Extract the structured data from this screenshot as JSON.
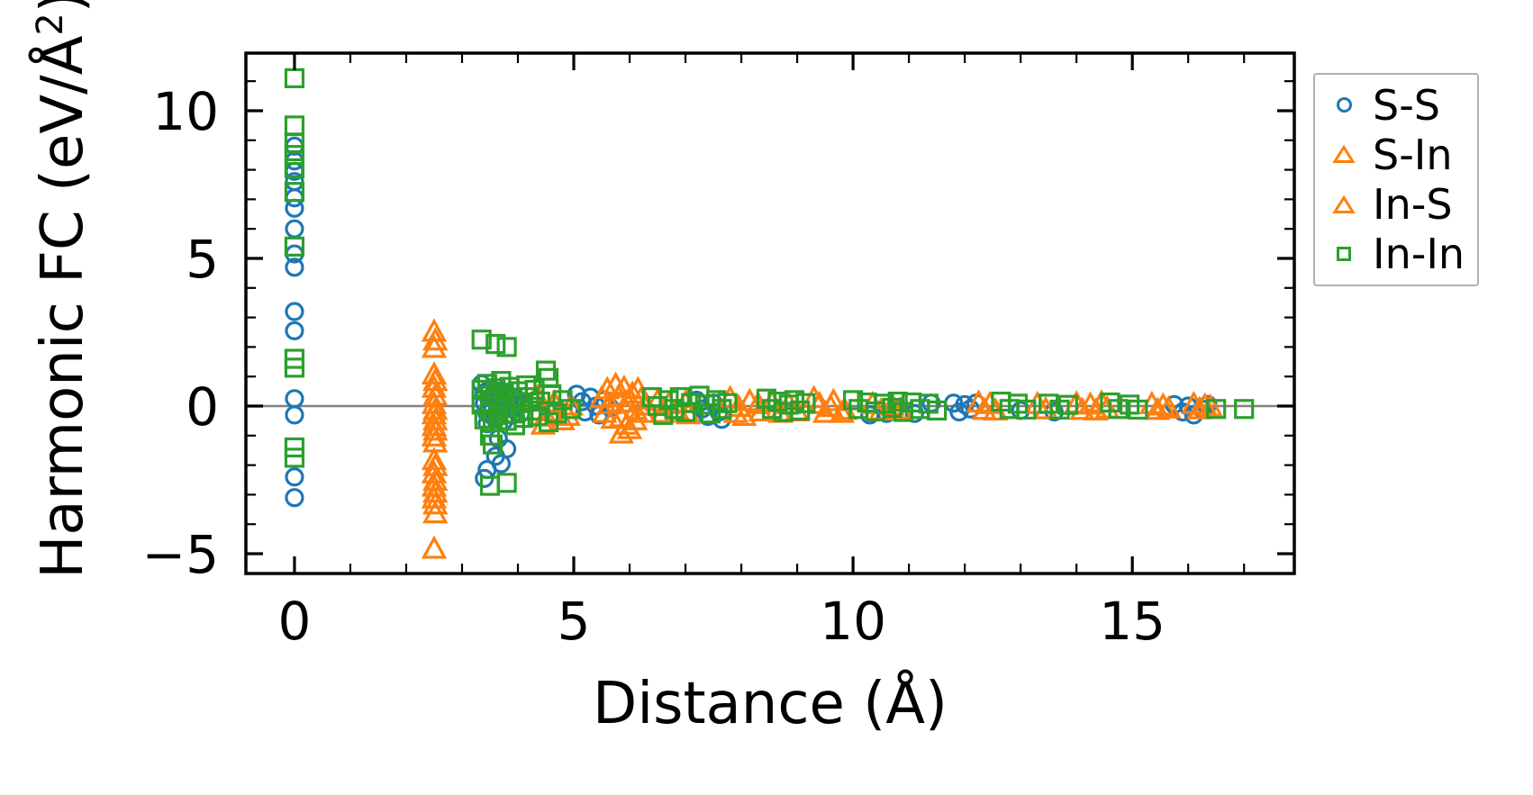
{
  "figure": {
    "background": "#ffffff"
  },
  "chart_data": {
    "type": "scatter",
    "title": "",
    "xlabel": "Distance (Å)",
    "ylabel": "Harmonic FC (eV/Å²)",
    "ylabel_parts": {
      "pre": "Harmonic FC (eV/Å",
      "sup": "2",
      "post": ")"
    },
    "xlim": [
      -0.87,
      17.9
    ],
    "ylim": [
      -5.67,
      11.95
    ],
    "xticks": {
      "values": [
        0,
        5,
        10,
        15
      ],
      "labels": [
        "0",
        "5",
        "10",
        "15"
      ],
      "minor_step": 1
    },
    "yticks": {
      "values": [
        -5,
        0,
        5,
        10
      ],
      "labels": [
        "−5",
        "0",
        "5",
        "10"
      ],
      "minor_step": 1
    },
    "grid": false,
    "zero_line": {
      "y": 0,
      "color": "#808080"
    },
    "axis_color": "#000000",
    "legend": {
      "position": "outside-upper-right",
      "border_color": "#b0b0b0",
      "background": "#ffffff"
    },
    "series": [
      {
        "name": "S-S",
        "marker": "circle",
        "color": "#1f77b4",
        "points": [
          [
            0,
            8.8
          ],
          [
            0,
            8.3
          ],
          [
            0,
            7.95
          ],
          [
            0,
            7.6
          ],
          [
            0,
            7.05
          ],
          [
            0,
            6.7
          ],
          [
            0,
            6.0
          ],
          [
            0,
            5.15
          ],
          [
            0,
            4.7
          ],
          [
            0,
            3.2
          ],
          [
            0,
            2.55
          ],
          [
            0,
            0.25
          ],
          [
            0,
            -0.3
          ],
          [
            0,
            -2.4
          ],
          [
            0,
            -3.1
          ],
          [
            3.35,
            0.75
          ],
          [
            3.4,
            0.45
          ],
          [
            3.4,
            0.1
          ],
          [
            3.45,
            -0.25
          ],
          [
            3.45,
            -0.6
          ],
          [
            3.5,
            0.6
          ],
          [
            3.55,
            0.25
          ],
          [
            3.55,
            -0.1
          ],
          [
            3.6,
            -0.45
          ],
          [
            3.65,
            0.5
          ],
          [
            3.7,
            0.2
          ],
          [
            3.7,
            -0.15
          ],
          [
            3.75,
            -0.5
          ],
          [
            3.8,
            0.4
          ],
          [
            3.85,
            0.05
          ],
          [
            3.9,
            -0.3
          ],
          [
            3.95,
            0.3
          ],
          [
            4.0,
            0.0
          ],
          [
            4.05,
            -0.25
          ],
          [
            4.1,
            0.15
          ],
          [
            3.65,
            -1.1
          ],
          [
            3.8,
            -1.45
          ],
          [
            3.6,
            -1.7
          ],
          [
            3.7,
            -1.95
          ],
          [
            3.45,
            -2.15
          ],
          [
            3.4,
            -2.45
          ],
          [
            5.05,
            0.4
          ],
          [
            5.15,
            0.15
          ],
          [
            5.2,
            -0.2
          ],
          [
            5.3,
            0.3
          ],
          [
            5.4,
            0.0
          ],
          [
            5.45,
            -0.3
          ],
          [
            5.55,
            0.2
          ],
          [
            5.65,
            -0.05
          ],
          [
            7.2,
            0.2
          ],
          [
            7.3,
            -0.1
          ],
          [
            7.4,
            -0.35
          ],
          [
            7.5,
            0.1
          ],
          [
            7.6,
            -0.2
          ],
          [
            7.65,
            -0.45
          ],
          [
            10.3,
            -0.3
          ],
          [
            10.6,
            -0.25
          ],
          [
            10.75,
            -0.1
          ],
          [
            11.1,
            -0.25
          ],
          [
            11.4,
            0.1
          ],
          [
            11.8,
            0.1
          ],
          [
            11.9,
            -0.2
          ],
          [
            12.0,
            0.05
          ],
          [
            12.1,
            -0.1
          ],
          [
            12.2,
            0.1
          ],
          [
            13.0,
            -0.15
          ],
          [
            13.6,
            -0.2
          ],
          [
            15.75,
            0.05
          ],
          [
            15.9,
            -0.2
          ],
          [
            16.0,
            0.0
          ],
          [
            16.1,
            -0.3
          ],
          [
            16.25,
            -0.1
          ],
          [
            16.35,
            0.05
          ]
        ]
      },
      {
        "name": "S-In",
        "marker": "triangle-up",
        "color": "#ff7f0e",
        "points": [
          [
            2.5,
            2.55
          ],
          [
            2.5,
            2.0
          ],
          [
            2.5,
            1.1
          ],
          [
            2.5,
            0.65
          ],
          [
            2.5,
            0.1
          ],
          [
            2.5,
            -0.25
          ],
          [
            2.5,
            -0.65
          ],
          [
            2.5,
            -1.0
          ],
          [
            2.5,
            -1.8
          ],
          [
            2.5,
            -2.25
          ],
          [
            2.5,
            -2.7
          ],
          [
            2.5,
            -3.1
          ],
          [
            2.5,
            -4.8
          ],
          [
            4.35,
            0.35
          ],
          [
            4.5,
            -0.3
          ],
          [
            4.65,
            0.15
          ],
          [
            4.8,
            -0.45
          ],
          [
            4.95,
            0.05
          ],
          [
            5.5,
            0.3
          ],
          [
            5.6,
            0.6
          ],
          [
            5.7,
            -0.4
          ],
          [
            5.8,
            0.35
          ],
          [
            5.9,
            0.65
          ],
          [
            5.95,
            -0.6
          ],
          [
            6.05,
            0.45
          ],
          [
            6.1,
            -0.1
          ],
          [
            6.2,
            0.25
          ],
          [
            5.85,
            -0.9
          ],
          [
            6.5,
            0.2
          ],
          [
            6.7,
            0.1
          ],
          [
            7.0,
            0.15
          ],
          [
            7.8,
            0.3
          ],
          [
            7.95,
            0.0
          ],
          [
            8.15,
            0.2
          ],
          [
            8.3,
            0.1
          ],
          [
            8.55,
            0.15
          ],
          [
            8.85,
            0.1
          ],
          [
            9.3,
            0.3
          ],
          [
            9.5,
            -0.2
          ],
          [
            9.65,
            0.2
          ],
          [
            9.85,
            -0.1
          ],
          [
            10.35,
            0.1
          ],
          [
            10.7,
            0.05
          ],
          [
            12.25,
            0.15
          ],
          [
            12.45,
            0.1
          ],
          [
            13.3,
            0.1
          ],
          [
            14.0,
            0.12
          ],
          [
            14.25,
            0.08
          ],
          [
            14.45,
            0.15
          ],
          [
            15.35,
            0.1
          ],
          [
            15.55,
            0.05
          ],
          [
            16.1,
            0.1
          ],
          [
            16.3,
            0.05
          ]
        ]
      },
      {
        "name": "In-S",
        "marker": "triangle-up",
        "color": "#ff7f0e",
        "points": [
          [
            2.52,
            2.25
          ],
          [
            2.52,
            0.88
          ],
          [
            2.52,
            0.38
          ],
          [
            2.52,
            -0.1
          ],
          [
            2.52,
            -0.45
          ],
          [
            2.52,
            -0.8
          ],
          [
            2.52,
            -1.2
          ],
          [
            2.52,
            -2.0
          ],
          [
            2.52,
            -2.5
          ],
          [
            2.52,
            -2.9
          ],
          [
            2.52,
            -3.3
          ],
          [
            2.52,
            -3.6
          ],
          [
            4.3,
            0.25
          ],
          [
            4.45,
            -0.6
          ],
          [
            4.6,
            -0.15
          ],
          [
            4.9,
            -0.3
          ],
          [
            5.55,
            -0.2
          ],
          [
            5.65,
            0.1
          ],
          [
            5.75,
            0.75
          ],
          [
            5.85,
            -0.35
          ],
          [
            5.95,
            0.15
          ],
          [
            6.0,
            -0.75
          ],
          [
            6.1,
            -0.45
          ],
          [
            6.15,
            0.6
          ],
          [
            6.25,
            -0.2
          ],
          [
            6.3,
            0.05
          ],
          [
            6.6,
            -0.2
          ],
          [
            6.85,
            -0.1
          ],
          [
            7.05,
            -0.25
          ],
          [
            7.9,
            -0.2
          ],
          [
            8.05,
            -0.3
          ],
          [
            8.35,
            -0.15
          ],
          [
            8.7,
            -0.2
          ],
          [
            9.0,
            -0.15
          ],
          [
            9.4,
            0.1
          ],
          [
            9.6,
            0.0
          ],
          [
            9.8,
            -0.2
          ],
          [
            10.5,
            -0.12
          ],
          [
            10.85,
            -0.08
          ],
          [
            12.35,
            -0.1
          ],
          [
            12.55,
            -0.12
          ],
          [
            13.45,
            -0.08
          ],
          [
            14.1,
            -0.1
          ],
          [
            14.35,
            -0.12
          ],
          [
            14.55,
            -0.05
          ],
          [
            15.45,
            -0.1
          ],
          [
            15.65,
            -0.05
          ],
          [
            16.2,
            -0.08
          ],
          [
            16.4,
            0.0
          ]
        ]
      },
      {
        "name": "In-In",
        "marker": "square",
        "color": "#2ca02c",
        "points": [
          [
            0,
            11.1
          ],
          [
            0,
            9.5
          ],
          [
            0,
            8.9
          ],
          [
            0,
            8.5
          ],
          [
            0,
            8.05
          ],
          [
            0,
            7.25
          ],
          [
            0,
            5.4
          ],
          [
            0,
            1.6
          ],
          [
            0,
            1.3
          ],
          [
            0,
            -1.4
          ],
          [
            0,
            -1.75
          ],
          [
            3.35,
            2.25
          ],
          [
            3.6,
            2.1
          ],
          [
            3.8,
            2.0
          ],
          [
            3.35,
            0.55
          ],
          [
            3.35,
            0.05
          ],
          [
            3.4,
            -0.45
          ],
          [
            3.45,
            0.75
          ],
          [
            3.5,
            0.35
          ],
          [
            3.5,
            -0.15
          ],
          [
            3.55,
            -0.55
          ],
          [
            3.6,
            0.6
          ],
          [
            3.65,
            0.2
          ],
          [
            3.65,
            -0.3
          ],
          [
            3.7,
            0.85
          ],
          [
            3.75,
            0.45
          ],
          [
            3.75,
            -0.05
          ],
          [
            3.8,
            -0.5
          ],
          [
            3.85,
            0.65
          ],
          [
            3.9,
            0.25
          ],
          [
            3.9,
            -0.25
          ],
          [
            3.95,
            -0.65
          ],
          [
            4.0,
            0.5
          ],
          [
            4.05,
            0.1
          ],
          [
            4.1,
            -0.4
          ],
          [
            4.15,
            0.7
          ],
          [
            4.2,
            0.3
          ],
          [
            4.25,
            -0.15
          ],
          [
            4.3,
            0.55
          ],
          [
            4.35,
            -0.35
          ],
          [
            4.4,
            0.15
          ],
          [
            4.5,
            1.2
          ],
          [
            4.55,
            0.95
          ],
          [
            4.55,
            -0.55
          ],
          [
            4.6,
            0.4
          ],
          [
            4.7,
            -0.25
          ],
          [
            4.8,
            0.2
          ],
          [
            4.95,
            -0.1
          ],
          [
            3.5,
            -1.0
          ],
          [
            3.55,
            -1.3
          ],
          [
            3.5,
            -2.7
          ],
          [
            3.8,
            -2.6
          ],
          [
            6.4,
            0.3
          ],
          [
            6.5,
            0.0
          ],
          [
            6.6,
            -0.3
          ],
          [
            6.7,
            0.2
          ],
          [
            6.8,
            -0.1
          ],
          [
            6.9,
            0.3
          ],
          [
            7.0,
            -0.2
          ],
          [
            7.1,
            0.1
          ],
          [
            7.25,
            0.35
          ],
          [
            7.35,
            0.05
          ],
          [
            7.45,
            -0.25
          ],
          [
            7.55,
            0.2
          ],
          [
            7.65,
            -0.1
          ],
          [
            7.75,
            0.1
          ],
          [
            8.45,
            0.25
          ],
          [
            8.55,
            -0.1
          ],
          [
            8.65,
            0.15
          ],
          [
            8.75,
            -0.2
          ],
          [
            8.85,
            0.05
          ],
          [
            8.95,
            0.2
          ],
          [
            9.05,
            -0.15
          ],
          [
            9.15,
            0.1
          ],
          [
            10.0,
            0.2
          ],
          [
            10.1,
            -0.1
          ],
          [
            10.25,
            0.12
          ],
          [
            10.4,
            -0.18
          ],
          [
            10.55,
            0.08
          ],
          [
            10.7,
            -0.06
          ],
          [
            10.8,
            0.15
          ],
          [
            10.9,
            -0.2
          ],
          [
            11.05,
            0.12
          ],
          [
            11.2,
            -0.1
          ],
          [
            11.35,
            0.08
          ],
          [
            11.5,
            -0.15
          ],
          [
            12.65,
            0.15
          ],
          [
            12.8,
            -0.1
          ],
          [
            12.95,
            0.08
          ],
          [
            13.1,
            -0.12
          ],
          [
            13.5,
            0.08
          ],
          [
            13.7,
            -0.12
          ],
          [
            13.85,
            0.04
          ],
          [
            14.6,
            0.12
          ],
          [
            14.75,
            -0.1
          ],
          [
            14.95,
            0.05
          ],
          [
            15.1,
            -0.12
          ],
          [
            16.5,
            -0.1
          ],
          [
            17.0,
            -0.1
          ]
        ]
      }
    ]
  }
}
